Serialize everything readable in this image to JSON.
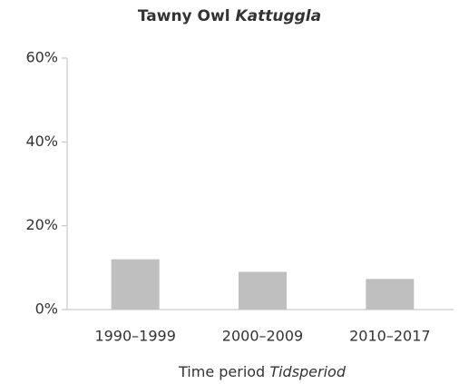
{
  "chart_data": {
    "type": "bar",
    "title": {
      "main": "Tawny Owl",
      "italic": "Kattuggla"
    },
    "x_label": {
      "main": "Time period",
      "italic": "Tidsperiod"
    },
    "categories": [
      "1990–1999",
      "2000–2009",
      "2010–2017"
    ],
    "values": [
      12,
      9,
      7.3
    ],
    "color": "#bfbfbf",
    "ylim": [
      0,
      60
    ],
    "yticks": [
      {
        "value": 0,
        "label": "0%"
      },
      {
        "value": 20,
        "label": "20%"
      },
      {
        "value": 40,
        "label": "40%"
      },
      {
        "value": 60,
        "label": "60%"
      }
    ],
    "grid": false
  }
}
